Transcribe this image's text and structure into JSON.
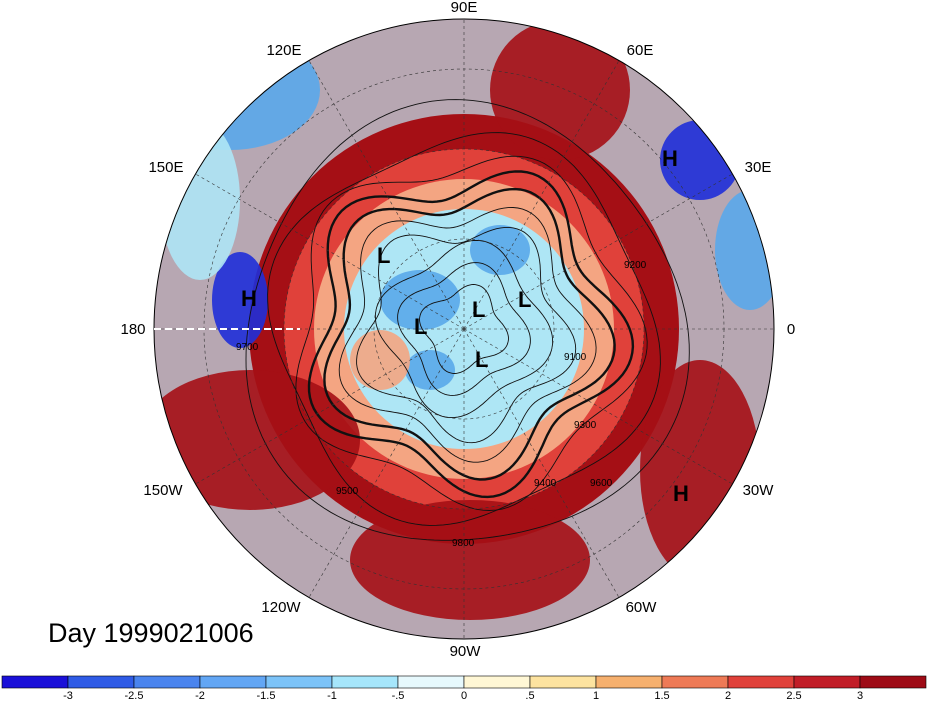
{
  "map": {
    "projection": "polar-stereographic-north",
    "longitude_labels": [
      {
        "id": "lon-90e",
        "text": "90E"
      },
      {
        "id": "lon-60e",
        "text": "60E"
      },
      {
        "id": "lon-30e",
        "text": "30E"
      },
      {
        "id": "lon-0",
        "text": "0"
      },
      {
        "id": "lon-30w",
        "text": "30W"
      },
      {
        "id": "lon-60w",
        "text": "60W"
      },
      {
        "id": "lon-90w",
        "text": "90W"
      },
      {
        "id": "lon-120w",
        "text": "120W"
      },
      {
        "id": "lon-150w",
        "text": "150W"
      },
      {
        "id": "lon-180",
        "text": "180"
      },
      {
        "id": "lon-150e",
        "text": "150E"
      },
      {
        "id": "lon-120e",
        "text": "120E"
      }
    ],
    "pressure_centers": [
      {
        "id": "high-center-east-asia",
        "text": "H"
      },
      {
        "id": "high-center-pacific",
        "text": "H"
      },
      {
        "id": "high-center-atlantic",
        "text": "H"
      },
      {
        "id": "low-center-1",
        "text": "L"
      },
      {
        "id": "low-center-2",
        "text": "L"
      },
      {
        "id": "low-center-3",
        "text": "L"
      },
      {
        "id": "low-center-4",
        "text": "L"
      },
      {
        "id": "low-center-5",
        "text": "L"
      }
    ],
    "contour_labels": [
      "9100",
      "9200",
      "9300",
      "9400",
      "9500",
      "9600",
      "9700",
      "9800"
    ],
    "anomaly_colors": {
      "strong_positive": "#a50f15",
      "positive": "#e0413a",
      "weak_positive": "#f4a582",
      "neutral": "#fdf4d6",
      "weak_negative": "#aee6f5",
      "negative": "#5aa9ea",
      "strong_negative": "#1f2fd8"
    }
  },
  "title": {
    "day_label": "Day 1999021006"
  },
  "colorbar": {
    "ticks": [
      "-3",
      "-2.5",
      "-2",
      "-1.5",
      "-1",
      "-.5",
      "0",
      ".5",
      "1",
      "1.5",
      "2",
      "2.5",
      "3"
    ],
    "colors": [
      "#1a10d8",
      "#2f5be6",
      "#4a84ee",
      "#62a6f4",
      "#7cc3f8",
      "#a6e6fb",
      "#e7f9fd",
      "#fff7d5",
      "#fde3a0",
      "#f6b06e",
      "#ee7a56",
      "#e0413a",
      "#c11d27",
      "#9e0b16"
    ]
  }
}
